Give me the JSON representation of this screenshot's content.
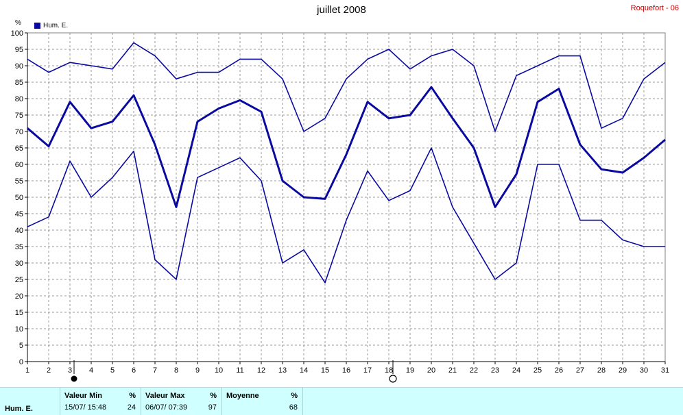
{
  "header": {
    "title": "juillet 2008",
    "station": "Roquefort - 06",
    "unit": "%"
  },
  "legend": {
    "label": "Hum. E.",
    "color": "#0a0aa0"
  },
  "chart_data": {
    "type": "line",
    "x": [
      1,
      2,
      3,
      4,
      5,
      6,
      7,
      8,
      9,
      10,
      11,
      12,
      13,
      14,
      15,
      16,
      17,
      18,
      19,
      20,
      21,
      22,
      23,
      24,
      25,
      26,
      27,
      28,
      29,
      30,
      31
    ],
    "xlim": [
      1,
      31
    ],
    "ylim": [
      0,
      100
    ],
    "ystep": 5,
    "grid": true,
    "color": "#0a0aa0",
    "series": [
      {
        "role": "max",
        "values": [
          92,
          88,
          91,
          90,
          89,
          97,
          93,
          86,
          88,
          88,
          92,
          92,
          86,
          70,
          74,
          86,
          92,
          95,
          89,
          93,
          95,
          90,
          70,
          87,
          90,
          93,
          93,
          71,
          74,
          86,
          91
        ]
      },
      {
        "role": "mean",
        "values": [
          71,
          65.5,
          79,
          71,
          73,
          81,
          66,
          47,
          73,
          77,
          79.5,
          76,
          55,
          50,
          49.5,
          63,
          79,
          74,
          75,
          83.5,
          74,
          65,
          47,
          57,
          79,
          83,
          66,
          58.5,
          57.5,
          62,
          67.5
        ]
      },
      {
        "role": "min",
        "values": [
          41,
          44,
          61,
          50,
          56,
          64,
          31,
          25,
          56,
          59,
          62,
          55,
          30,
          34,
          24,
          43,
          58,
          49,
          52,
          65,
          47,
          36,
          25,
          30,
          60,
          60,
          43,
          43,
          37,
          35,
          35
        ]
      }
    ],
    "moon_markers": [
      {
        "day": 3,
        "phase": "new-moon"
      },
      {
        "day": 18,
        "phase": "full-moon"
      }
    ]
  },
  "summary": {
    "row_label": "Hum. E.",
    "min": {
      "header": "Valeur Min",
      "unit": "%",
      "date": "15/07/  15:48",
      "value": "24"
    },
    "max": {
      "header": "Valeur Max",
      "unit": "%",
      "date": "06/07/  07:39",
      "value": "97"
    },
    "mean": {
      "header": "Moyenne",
      "unit": "%",
      "value": "68"
    }
  }
}
